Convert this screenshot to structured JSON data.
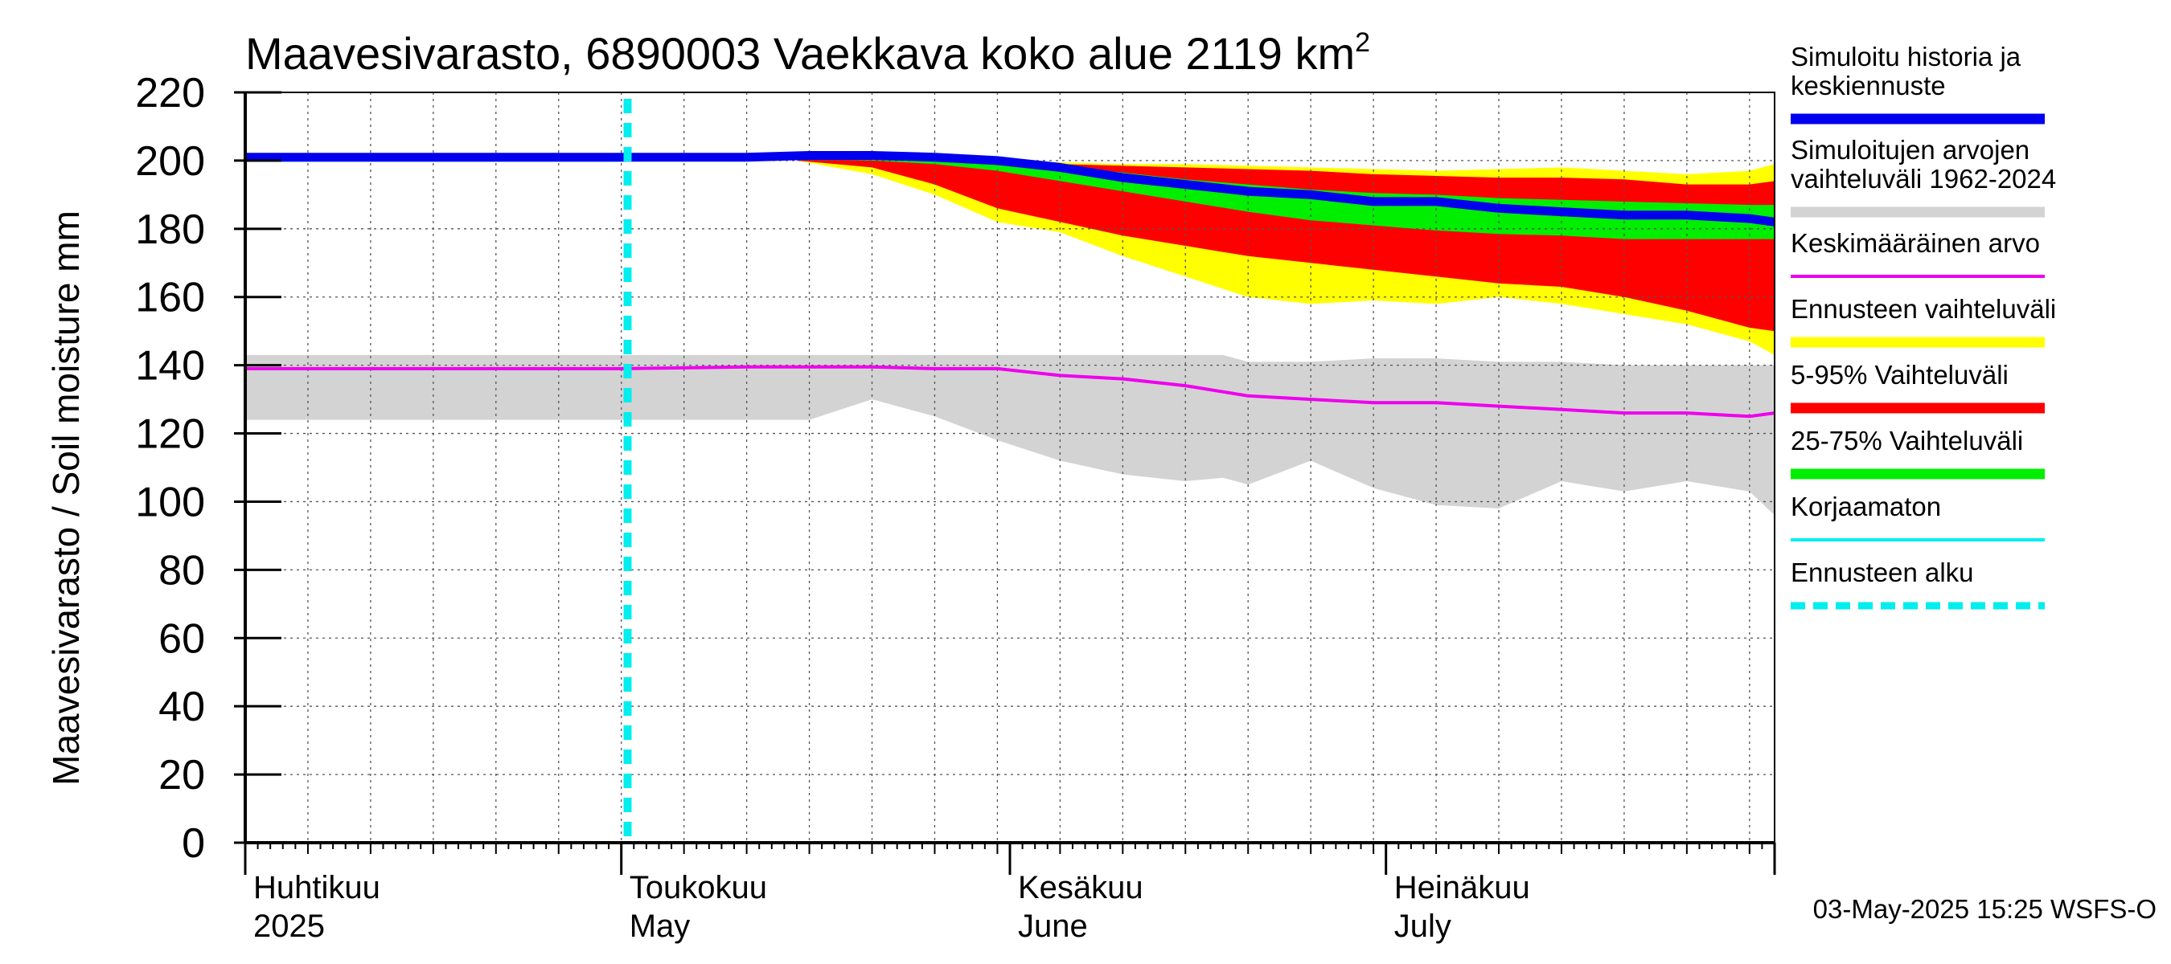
{
  "chart_data": {
    "type": "area",
    "title_main": "Maavesivarasto, 6890003 Vaekkava koko alue 2119 km",
    "title_sup": "2",
    "ylabel": "Maavesivarasto / Soil moisture   mm",
    "ylim": [
      0,
      220
    ],
    "yticks": [
      "0",
      "20",
      "40",
      "60",
      "80",
      "100",
      "120",
      "140",
      "160",
      "180",
      "200",
      "220"
    ],
    "x_day_range": [
      0,
      122
    ],
    "month_labels": [
      {
        "day": 0,
        "fi": "Huhtikuu",
        "en": "2025"
      },
      {
        "day": 30,
        "fi": "Toukokuu",
        "en": "May"
      },
      {
        "day": 61,
        "fi": "Kesäkuu",
        "en": "June"
      },
      {
        "day": 91,
        "fi": "Heinäkuu",
        "en": "July"
      }
    ],
    "month_boundaries": [
      0,
      30,
      61,
      91,
      122
    ],
    "forecast_start_day": 30.5,
    "grey_range": {
      "days": [
        0,
        30,
        45,
        50,
        55,
        60,
        65,
        70,
        75,
        78,
        80,
        85,
        90,
        95,
        100,
        105,
        110,
        115,
        120,
        122
      ],
      "upper": [
        143,
        143,
        143,
        143,
        143,
        143,
        143,
        143,
        143,
        143,
        141,
        141,
        142,
        142,
        141,
        141,
        140,
        140,
        140,
        140
      ],
      "lower": [
        124,
        124,
        124,
        130,
        125,
        118,
        112,
        108,
        106,
        107,
        105,
        112,
        104,
        99,
        98,
        106,
        103,
        106,
        103,
        96
      ]
    },
    "yellow_range": {
      "days": [
        44,
        50,
        55,
        60,
        65,
        70,
        75,
        80,
        85,
        90,
        95,
        100,
        105,
        110,
        115,
        120,
        122
      ],
      "upper": [
        201,
        201,
        200.5,
        200,
        199.5,
        199,
        199,
        198.5,
        198,
        197.5,
        197,
        197.5,
        198,
        197,
        196,
        197,
        199
      ],
      "lower": [
        200,
        196,
        190,
        182,
        179,
        172,
        166,
        160,
        158,
        159,
        158,
        160,
        158,
        155,
        152,
        147,
        143
      ]
    },
    "red_range": {
      "days": [
        44,
        50,
        55,
        60,
        65,
        70,
        75,
        80,
        85,
        90,
        95,
        100,
        105,
        110,
        115,
        120,
        122
      ],
      "upper": [
        200.5,
        200.5,
        200,
        199.5,
        199,
        198.5,
        198,
        197.5,
        197,
        196,
        195.5,
        195,
        195,
        194.5,
        193,
        193,
        194
      ],
      "lower": [
        200,
        198,
        193,
        186,
        182,
        178,
        175,
        172,
        170,
        168,
        166,
        164,
        163,
        160,
        156,
        151,
        150
      ]
    },
    "green_range": {
      "days": [
        47,
        50,
        55,
        60,
        65,
        70,
        75,
        80,
        85,
        90,
        95,
        100,
        105,
        110,
        115,
        120,
        122
      ],
      "upper": [
        200.5,
        200.5,
        200,
        199.5,
        198.5,
        196.5,
        194.5,
        193,
        191.5,
        190.5,
        190,
        189,
        188.5,
        188,
        187.5,
        187,
        187
      ],
      "lower": [
        200.3,
        200,
        199,
        197,
        194,
        191,
        188,
        185,
        182.5,
        181,
        179.5,
        178.5,
        178,
        177,
        177,
        177,
        177
      ]
    },
    "series": [
      {
        "name": "Simuloitu historia ja keskiennuste",
        "color": "#0000ee",
        "days": [
          0,
          30,
          40,
          45,
          50,
          55,
          60,
          65,
          70,
          75,
          80,
          85,
          90,
          95,
          100,
          105,
          110,
          115,
          120,
          122
        ],
        "values": [
          201,
          201,
          201,
          201.5,
          201.5,
          201,
          200,
          198,
          195,
          193,
          191,
          190,
          188,
          188,
          186,
          185,
          184,
          184,
          183,
          182
        ]
      },
      {
        "name": "Keskimääräinen arvo",
        "color": "#ee00ee",
        "days": [
          0,
          30,
          40,
          45,
          50,
          55,
          60,
          65,
          70,
          75,
          80,
          85,
          90,
          95,
          100,
          105,
          110,
          115,
          120,
          122
        ],
        "values": [
          139,
          139,
          139.5,
          139.5,
          139.5,
          139,
          139,
          137,
          136,
          134,
          131,
          130,
          129,
          129,
          128,
          127,
          126,
          126,
          125,
          126
        ]
      },
      {
        "name": "Korjaamaton",
        "color": "#00eeee",
        "days": [
          0,
          30
        ],
        "values": [
          200,
          200
        ]
      }
    ],
    "legend": [
      {
        "lines": [
          "Simuloitu historia ja",
          "keskiennuste"
        ],
        "color": "#0000ee",
        "style": "thick"
      },
      {
        "lines": [
          "Simuloitujen arvojen",
          "vaihteluväli 1962-2024"
        ],
        "color": "#d3d3d3",
        "style": "thick"
      },
      {
        "lines": [
          "Keskimääräinen arvo"
        ],
        "color": "#ee00ee",
        "style": "thin"
      },
      {
        "lines": [
          "Ennusteen vaihteluväli"
        ],
        "color": "#ffff00",
        "style": "thick"
      },
      {
        "lines": [
          "5-95% Vaihteluväli"
        ],
        "color": "#ff0000",
        "style": "thick"
      },
      {
        "lines": [
          "25-75% Vaihteluväli"
        ],
        "color": "#00ee00",
        "style": "thick"
      },
      {
        "lines": [
          "Korjaamaton"
        ],
        "color": "#00eeee",
        "style": "thin"
      },
      {
        "lines": [
          "Ennusteen alku"
        ],
        "color": "#00eeee",
        "style": "dashed"
      }
    ],
    "timestamp": "03-May-2025 15:25 WSFS-O"
  }
}
